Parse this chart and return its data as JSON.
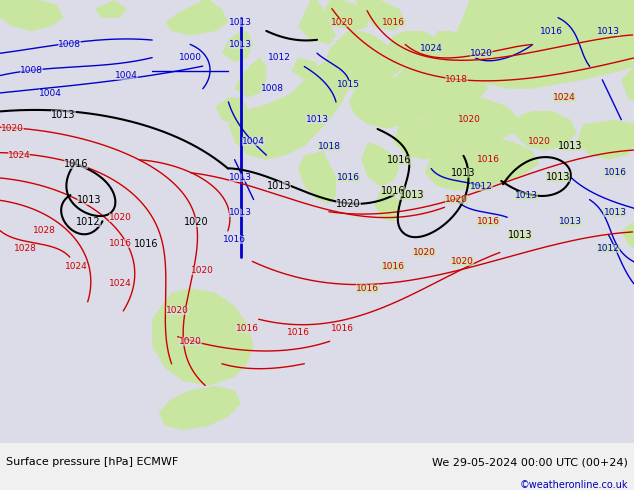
{
  "title_left": "Surface pressure [hPa] ECMWF",
  "title_right": "We 29-05-2024 00:00 UTC (00+24)",
  "copyright": "©weatheronline.co.uk",
  "fig_width": 6.34,
  "fig_height": 4.9,
  "dpi": 100,
  "map_bg_sea": "#e8e8ec",
  "map_bg_land_green": "#c8e6a0",
  "map_bg_land_gray": "#b0b0b0",
  "bottom_bar_color": "#f0f0f0",
  "bottom_bar_height": 0.095,
  "label_fontsize": 8.0,
  "label_color": "#000000",
  "copyright_color": "#0000bb",
  "contour_blue": "#0000cc",
  "contour_red": "#cc0000",
  "contour_black": "#000000",
  "sea_color": "#dcdce8",
  "land_color": "#c8e6a0",
  "coast_color": "#909090"
}
